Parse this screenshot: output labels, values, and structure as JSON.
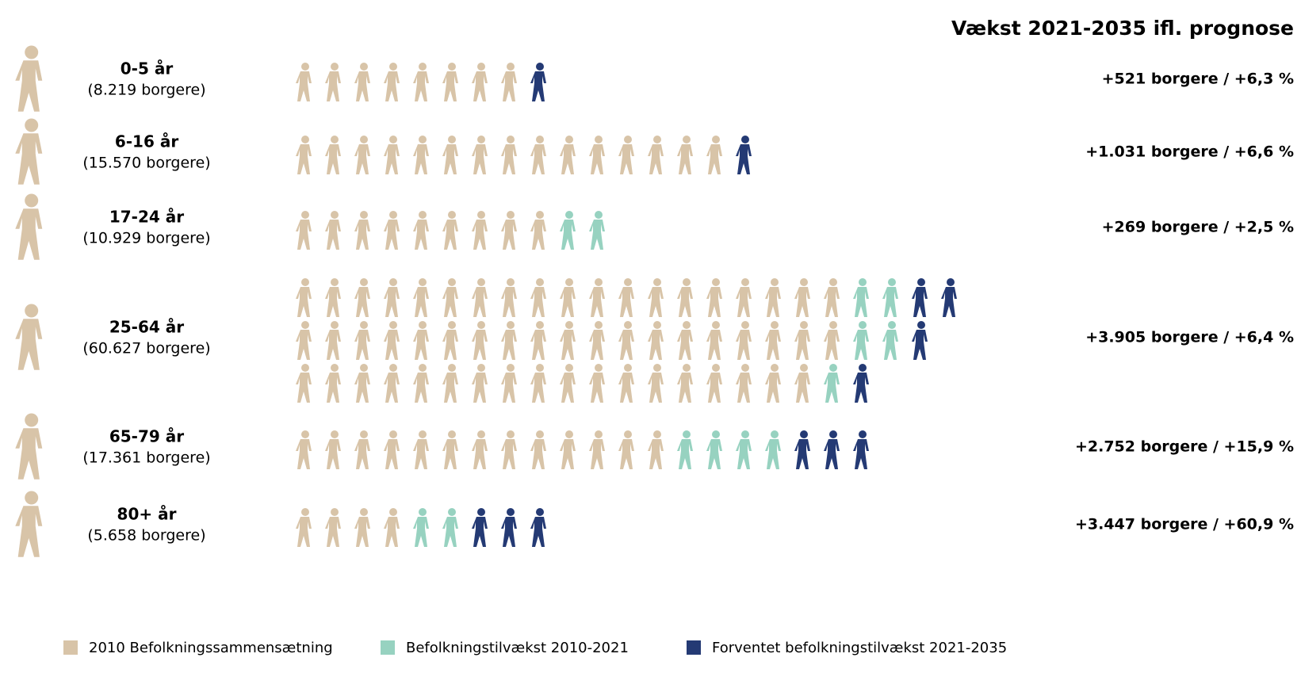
{
  "chart_data": {
    "type": "pictograph",
    "title": "Vækst 2021-2035 ifl. prognose",
    "categories": [
      "0-5 år",
      "6-16 år",
      "17-24 år",
      "25-64 år",
      "65-79 år",
      "80+ år"
    ],
    "subtitles": [
      "(8.219 borgere)",
      "(15.570 borgere)",
      "(10.929 borgere)",
      "(60.627 borgere)",
      "(17.361 borgere)",
      "(5.658 borgere)"
    ],
    "growth_labels": [
      "+521 borgere / +6,3 %",
      "+1.031 borgere / +6,6 %",
      "+269 borgere / +2,5 %",
      "+3.905 borgere / +6,4 %",
      "+2.752 borgere / +15,9 %",
      "+3.447 borgere / +60,9 %"
    ],
    "series": [
      {
        "name": "2010 Befolkningssammensætning",
        "color": "#d8c4a8",
        "values": [
          8,
          15,
          9,
          56,
          13,
          4
        ]
      },
      {
        "name": "Befolkningstilvækst 2010-2021",
        "color": "#97d2c0",
        "values": [
          0,
          0,
          2,
          5,
          4,
          2
        ]
      },
      {
        "name": "Forventet befolkningstilvækst 2021-2035",
        "color": "#243a74",
        "values": [
          1,
          1,
          0,
          4,
          3,
          3
        ]
      }
    ]
  }
}
